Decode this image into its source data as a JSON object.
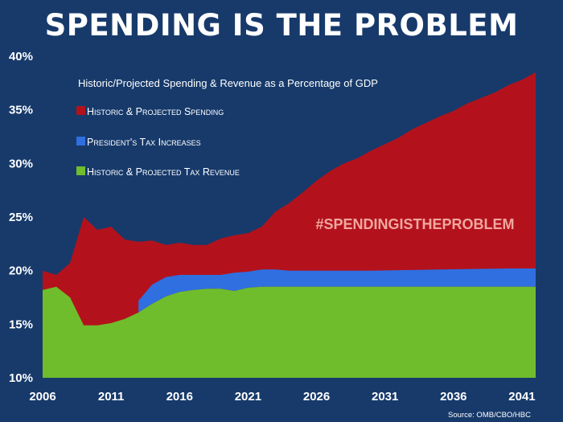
{
  "title": "SPENDING IS THE PROBLEM",
  "source": "Source: OMB/CBO/HBC",
  "chart_data": {
    "type": "area",
    "subtitle": "Historic/Projected Spending & Revenue as a Percentage of GDP",
    "annotation": "#SPENDINGISTHEPROBLEM",
    "xlim": [
      2006,
      2042
    ],
    "ylim": [
      10,
      40
    ],
    "x_ticks": [
      "2006",
      "2011",
      "2016",
      "2021",
      "2026",
      "2031",
      "2036",
      "2041"
    ],
    "y_ticks": [
      "10%",
      "15%",
      "20%",
      "25%",
      "30%",
      "35%",
      "40%"
    ],
    "legend": [
      "Historic & Projected Spending",
      "President's Tax Increases",
      "Historic & Projected Tax Revenue"
    ],
    "colors": {
      "spending": "#b3121c",
      "tax_increases": "#2f6fe0",
      "revenue": "#6fbd2c",
      "background": "#173a6b"
    },
    "series": [
      {
        "name": "Historic & Projected Spending",
        "points": [
          [
            2006,
            20.0
          ],
          [
            2007,
            19.6
          ],
          [
            2008,
            20.7
          ],
          [
            2009,
            25.0
          ],
          [
            2010,
            23.8
          ],
          [
            2011,
            24.1
          ],
          [
            2012,
            22.9
          ],
          [
            2013,
            22.7
          ],
          [
            2014,
            22.8
          ],
          [
            2015,
            22.4
          ],
          [
            2016,
            22.6
          ],
          [
            2017,
            22.4
          ],
          [
            2018,
            22.4
          ],
          [
            2019,
            23.0
          ],
          [
            2020,
            23.3
          ],
          [
            2021,
            23.5
          ],
          [
            2022,
            24.1
          ],
          [
            2023,
            25.5
          ],
          [
            2024,
            26.3
          ],
          [
            2025,
            27.3
          ],
          [
            2026,
            28.4
          ],
          [
            2027,
            29.3
          ],
          [
            2028,
            30.0
          ],
          [
            2029,
            30.5
          ],
          [
            2030,
            31.2
          ],
          [
            2031,
            31.8
          ],
          [
            2032,
            32.4
          ],
          [
            2033,
            33.2
          ],
          [
            2034,
            33.8
          ],
          [
            2035,
            34.4
          ],
          [
            2036,
            34.9
          ],
          [
            2037,
            35.6
          ],
          [
            2038,
            36.1
          ],
          [
            2039,
            36.6
          ],
          [
            2040,
            37.3
          ],
          [
            2041,
            37.8
          ],
          [
            2042,
            38.5
          ]
        ]
      },
      {
        "name": "President's Tax Increases",
        "points": [
          [
            2013,
            17.2
          ],
          [
            2014,
            18.7
          ],
          [
            2015,
            19.4
          ],
          [
            2016,
            19.6
          ],
          [
            2017,
            19.6
          ],
          [
            2018,
            19.6
          ],
          [
            2019,
            19.6
          ],
          [
            2020,
            19.8
          ],
          [
            2021,
            19.9
          ],
          [
            2022,
            20.1
          ],
          [
            2023,
            20.1
          ],
          [
            2024,
            20.0
          ],
          [
            2025,
            20.0
          ],
          [
            2026,
            20.0
          ],
          [
            2030,
            20.0
          ],
          [
            2035,
            20.1
          ],
          [
            2040,
            20.2
          ],
          [
            2042,
            20.2
          ]
        ]
      },
      {
        "name": "Historic & Projected Tax Revenue",
        "points": [
          [
            2006,
            18.2
          ],
          [
            2007,
            18.5
          ],
          [
            2008,
            17.5
          ],
          [
            2009,
            14.9
          ],
          [
            2010,
            14.9
          ],
          [
            2011,
            15.1
          ],
          [
            2012,
            15.5
          ],
          [
            2013,
            16.1
          ],
          [
            2014,
            16.9
          ],
          [
            2015,
            17.6
          ],
          [
            2016,
            18.0
          ],
          [
            2017,
            18.2
          ],
          [
            2018,
            18.3
          ],
          [
            2019,
            18.3
          ],
          [
            2020,
            18.1
          ],
          [
            2021,
            18.4
          ],
          [
            2022,
            18.5
          ],
          [
            2025,
            18.5
          ],
          [
            2030,
            18.5
          ],
          [
            2035,
            18.5
          ],
          [
            2042,
            18.5
          ]
        ]
      }
    ]
  }
}
